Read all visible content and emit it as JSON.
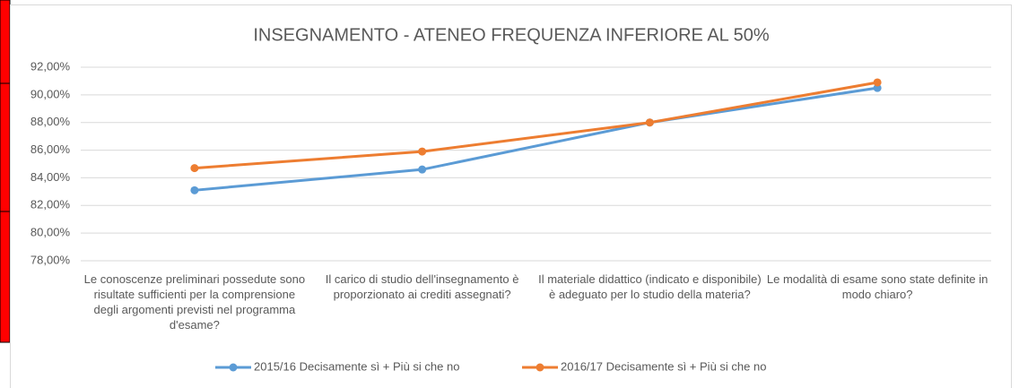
{
  "chart_data": {
    "type": "line",
    "title": "INSEGNAMENTO - ATENEO FREQUENZA INFERIORE AL 50%",
    "categories": [
      "Le conoscenze preliminari possedute sono risultate sufficienti per la comprensione degli argomenti previsti nel programma d'esame?",
      "Il carico di studio dell'insegnamento è proporzionato ai crediti assegnati?",
      "Il materiale didattico (indicato e disponibile) è adeguato per lo studio della materia?",
      "Le modalità di esame sono state definite in modo chiaro?"
    ],
    "series": [
      {
        "name": "2015/16 Decisamente sì + Più si che no",
        "color": "#5b9bd5",
        "values": [
          83.1,
          84.6,
          88.0,
          90.5
        ]
      },
      {
        "name": "2016/17 Decisamente sì + Più si che no",
        "color": "#ed7d31",
        "values": [
          84.7,
          85.9,
          88.0,
          90.9
        ]
      }
    ],
    "ylim": [
      78,
      92
    ],
    "yticks": [
      {
        "value": 78,
        "label": "78,00%"
      },
      {
        "value": 80,
        "label": "80,00%"
      },
      {
        "value": 82,
        "label": "82,00%"
      },
      {
        "value": 84,
        "label": "84,00%"
      },
      {
        "value": 86,
        "label": "86,00%"
      },
      {
        "value": 88,
        "label": "88,00%"
      },
      {
        "value": 90,
        "label": "90,00%"
      },
      {
        "value": 92,
        "label": "92,00%"
      }
    ],
    "grid": true,
    "legend": "bottom"
  }
}
